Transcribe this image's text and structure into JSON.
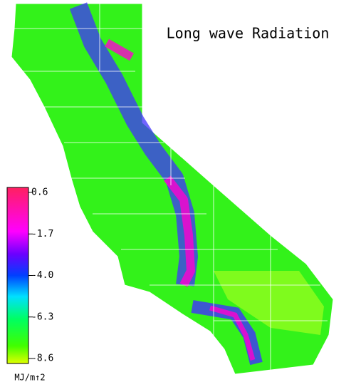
{
  "title": "Long wave Radiation",
  "legend": {
    "unit": "MJ/m↑2",
    "ticks": [
      0.6,
      -1.7,
      {
        "value": -4,
        "label": "-4.0"
      },
      -6.3,
      -8.6
    ]
  }
}
